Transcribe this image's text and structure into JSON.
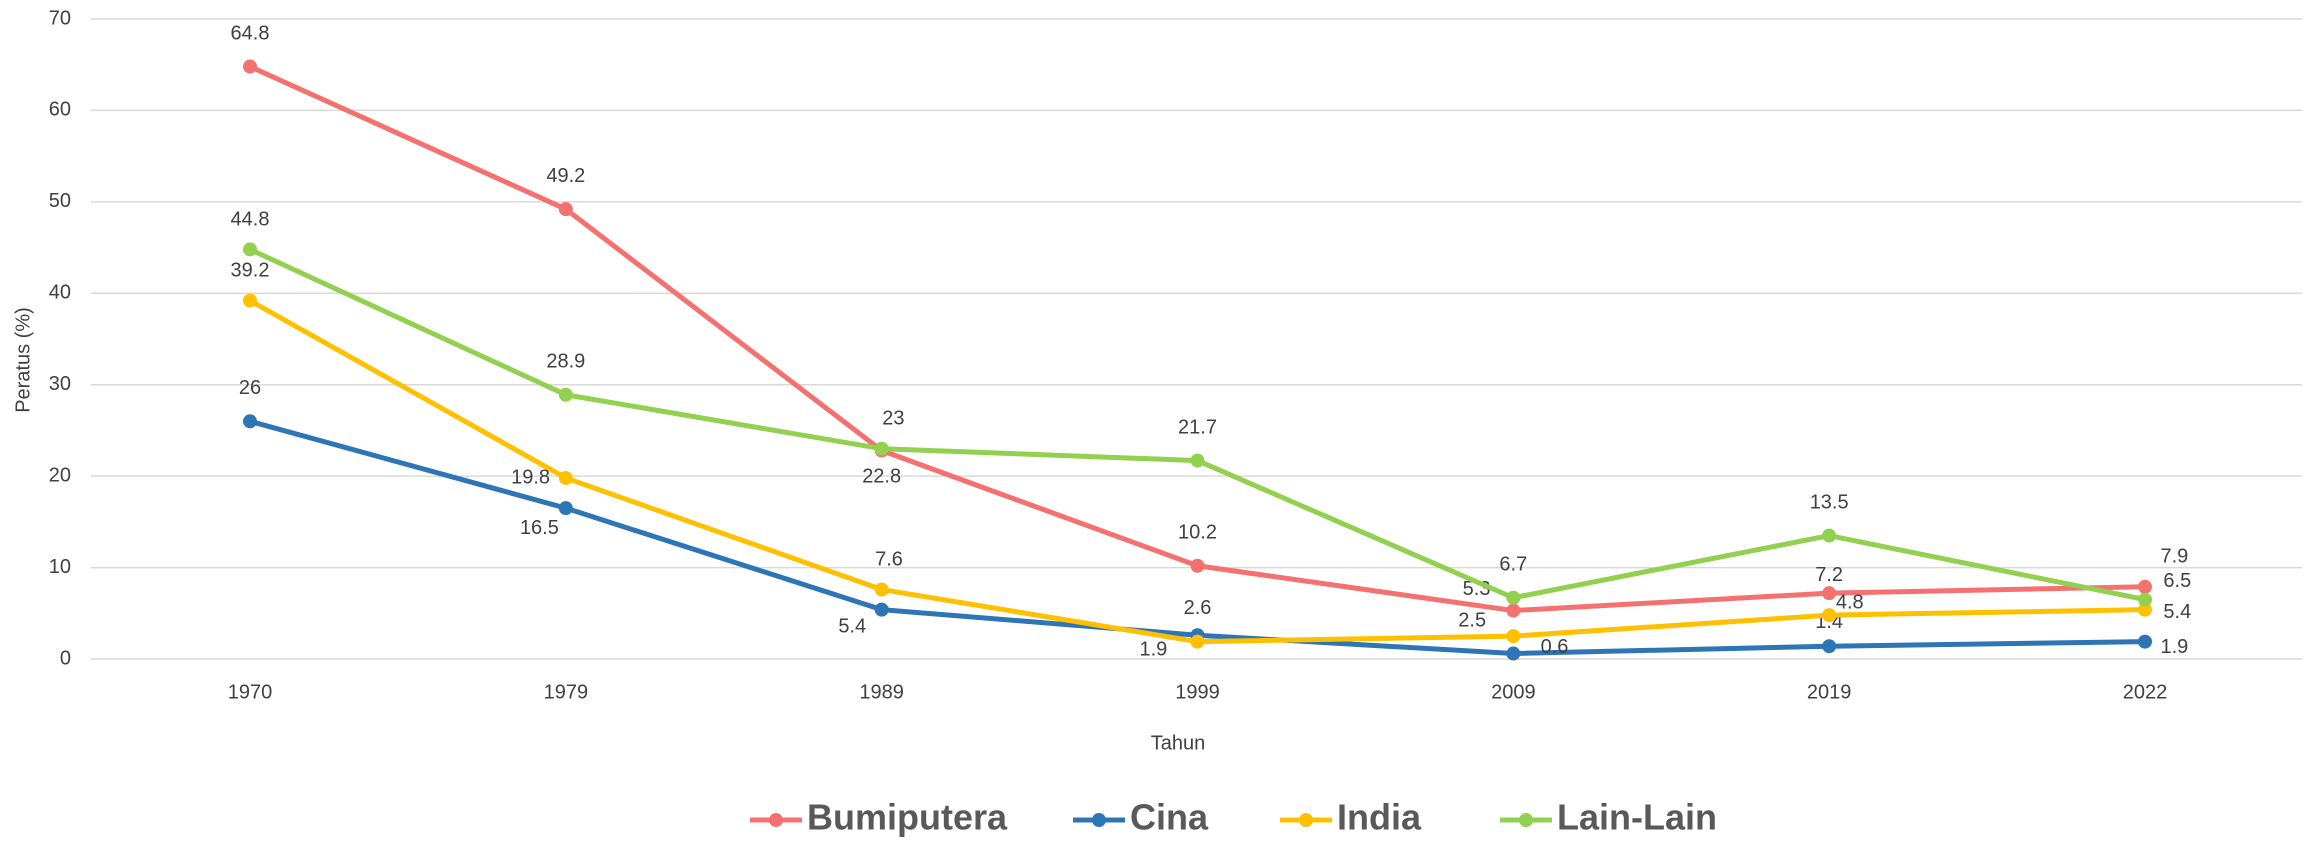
{
  "chart_data": {
    "type": "line",
    "x_label": "Tahun",
    "y_label": "Peratus (%)",
    "categories": [
      "1970",
      "1979",
      "1989",
      "1999",
      "2009",
      "2019",
      "2022"
    ],
    "series": [
      {
        "name": "Bumiputera",
        "color": "#f4716f",
        "values": [
          64.8,
          49.2,
          22.8,
          10.2,
          5.3,
          7.2,
          7.9
        ]
      },
      {
        "name": "Cina",
        "color": "#2e75b6",
        "values": [
          26,
          16.5,
          5.4,
          2.6,
          0.6,
          1.4,
          1.9
        ]
      },
      {
        "name": "India",
        "color": "#ffc000",
        "values": [
          39.2,
          19.8,
          7.6,
          1.9,
          2.5,
          4.8,
          5.4
        ]
      },
      {
        "name": "Lain-Lain",
        "color": "#92d050",
        "values": [
          44.8,
          28.9,
          23,
          21.7,
          6.7,
          13.5,
          6.5
        ]
      }
    ],
    "ylim": [
      0,
      70
    ],
    "yticks": [
      0,
      10,
      20,
      30,
      40,
      50,
      60,
      70
    ],
    "grid": true,
    "legend": "bottom"
  }
}
